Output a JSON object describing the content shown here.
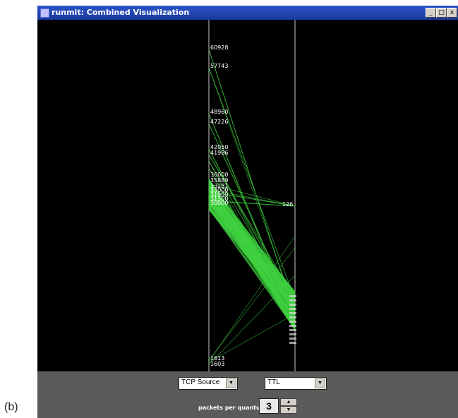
{
  "caption": "(b)",
  "window": {
    "title": "runmit: Combined Visualization",
    "minimize_label": "_",
    "maximize_label": "□",
    "close_label": "x"
  },
  "axes": {
    "left": {
      "labels": [
        "60928",
        "57743",
        "48960",
        "47226",
        "42050",
        "41986",
        "36000",
        "35889",
        "33281",
        "33000",
        "31900",
        "31500",
        "30000",
        "1613",
        "1603"
      ]
    },
    "right": {
      "labels": [
        "126"
      ]
    }
  },
  "controls": {
    "left_select": "TCP Source",
    "right_select": "TTL",
    "dropdown_arrow": "▼",
    "packets_label": "packets per quantum",
    "packets_value": "3",
    "spin_up": "▲",
    "spin_down": "▼"
  },
  "colors": {
    "line": "#3fd23f",
    "background": "#000000",
    "axis": "#c8c8c8",
    "panel": "#5a5a5a"
  }
}
